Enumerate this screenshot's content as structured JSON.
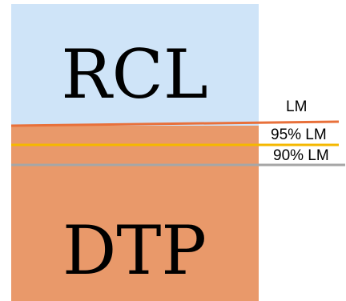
{
  "blocks": {
    "top": {
      "label": "RCL",
      "color": "#cfe4f8"
    },
    "bottom": {
      "label": "DTP",
      "color": "#e9996a"
    }
  },
  "levels": [
    {
      "label": "LM",
      "color": "#e8703a"
    },
    {
      "label": "95% LM",
      "color": "#f5b800"
    },
    {
      "label": "90% LM",
      "color": "#a6a6a6"
    }
  ]
}
